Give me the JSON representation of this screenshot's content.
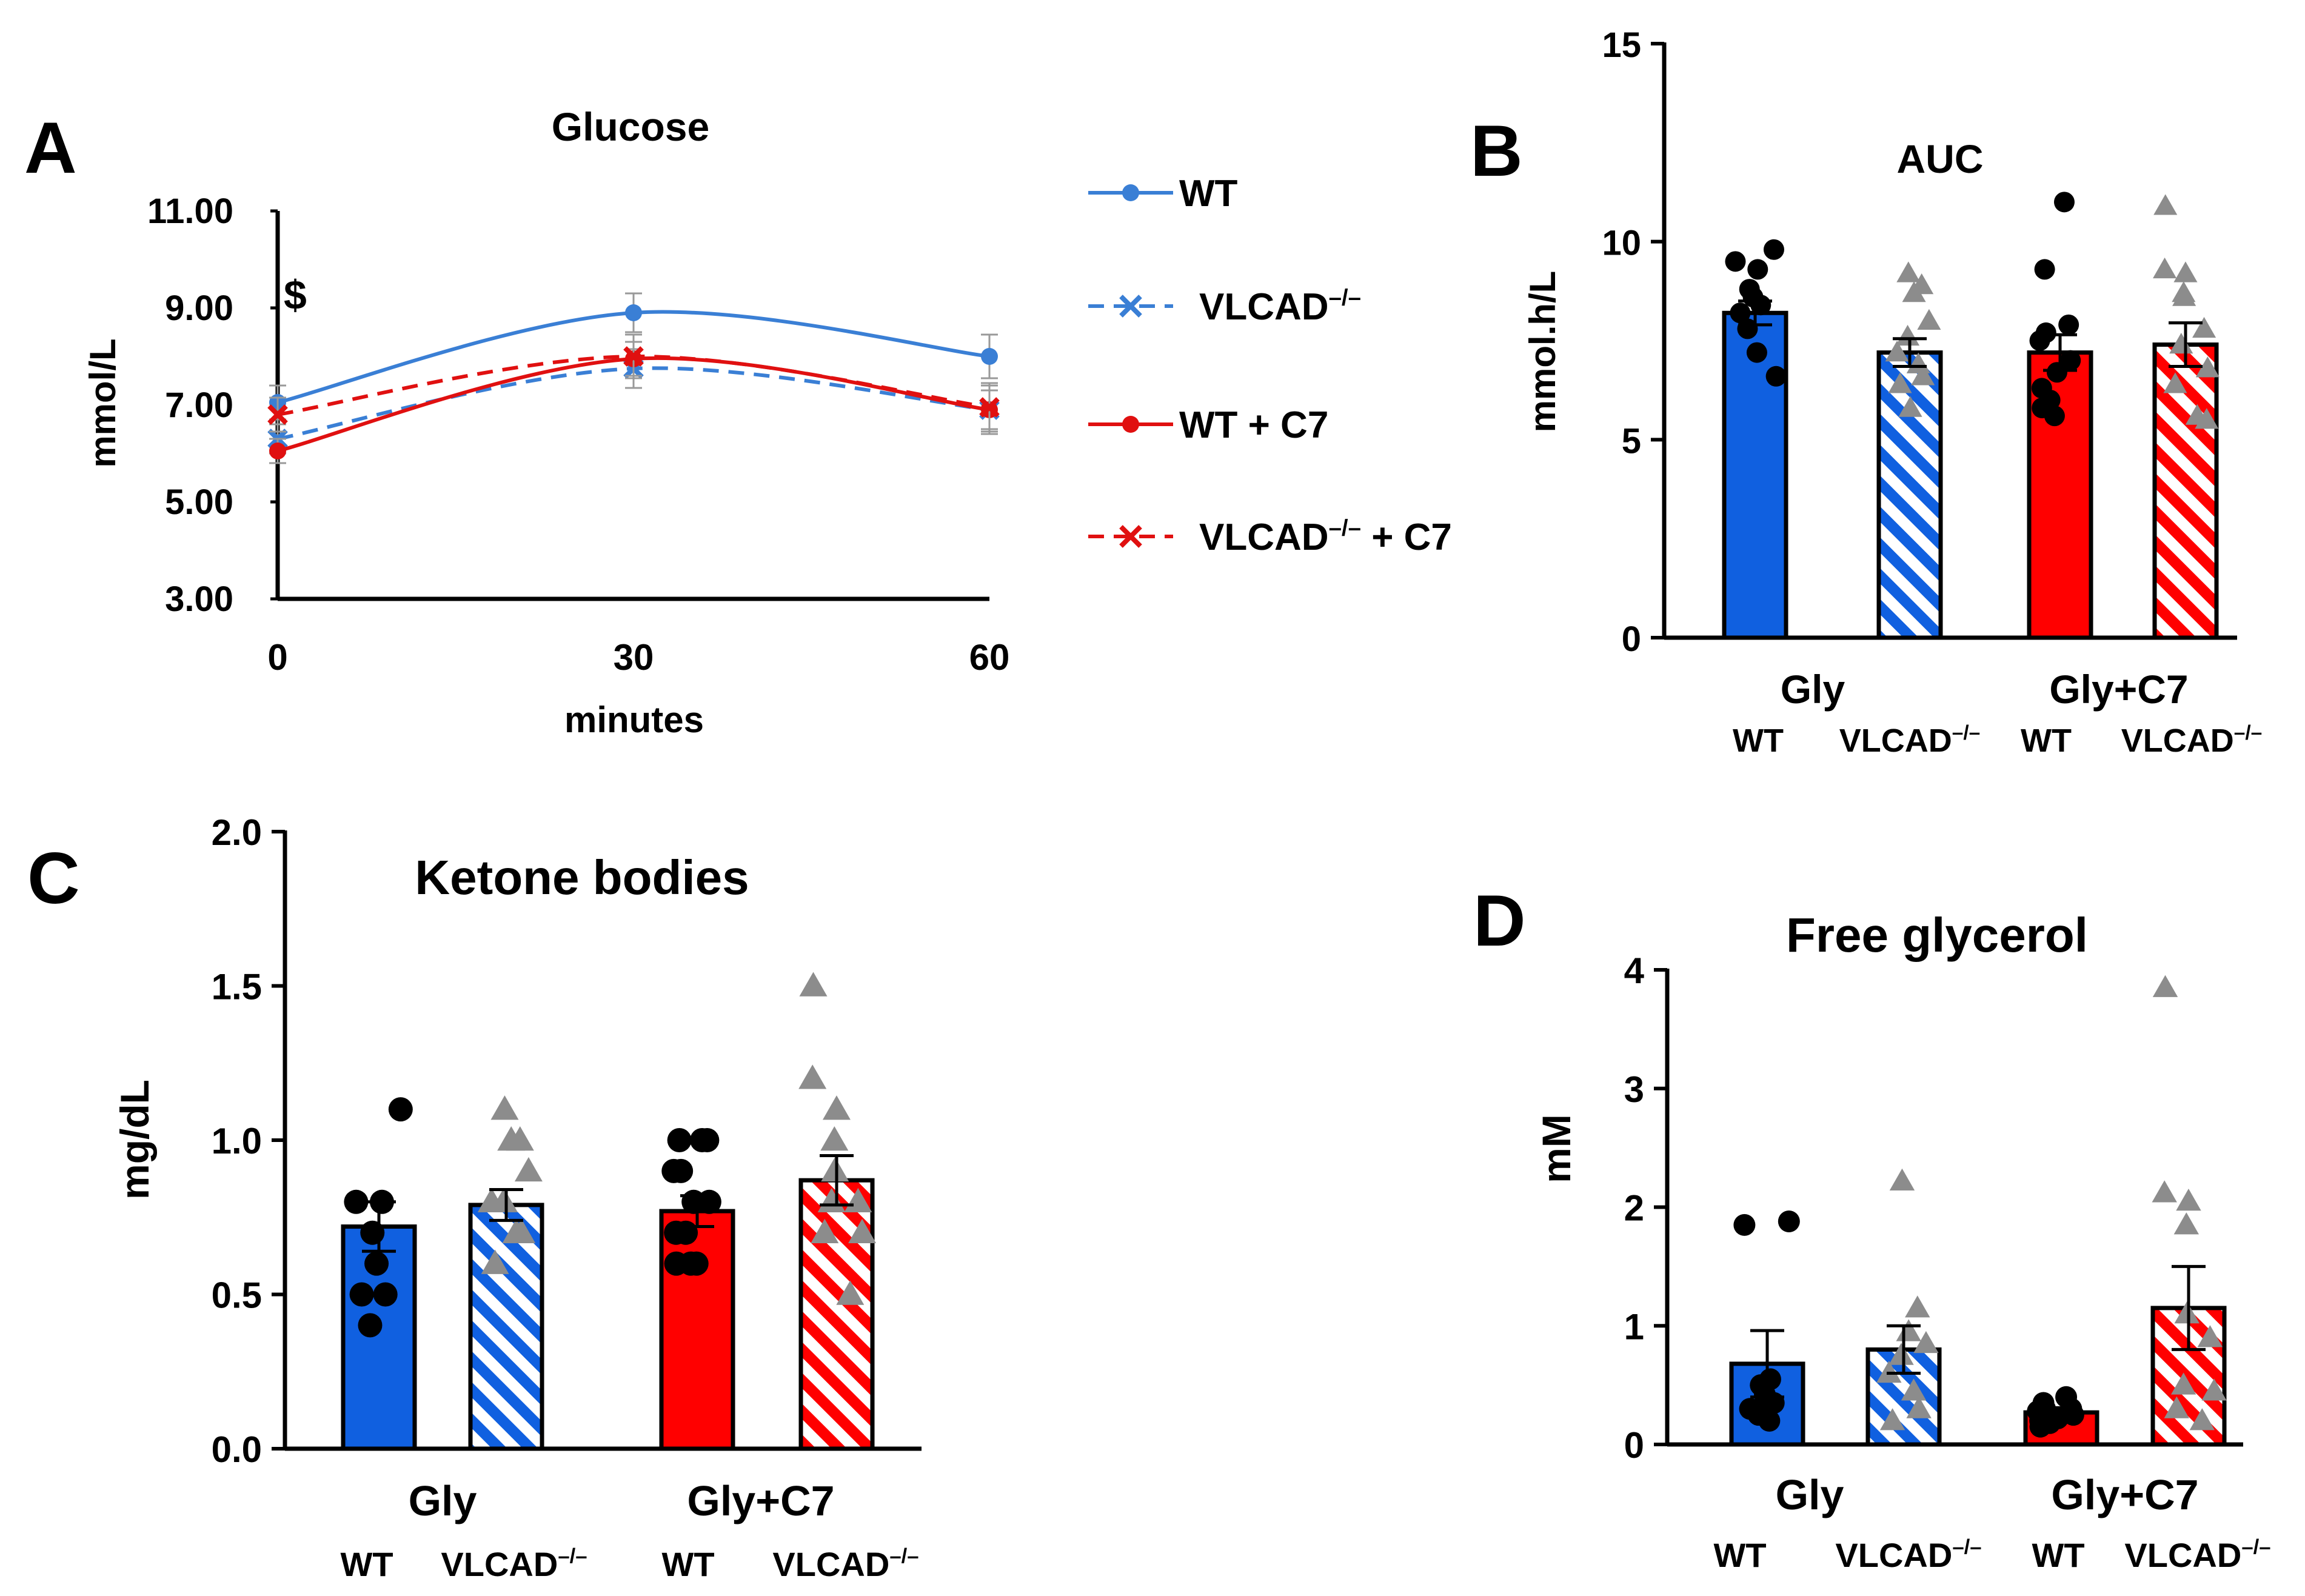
{
  "colors": {
    "wt": "#1060e0",
    "vlcad": "#1060e0",
    "wt_c7": "#ff0000",
    "vlcad_c7": "#ff0000",
    "line_wt": "#3a7fd5",
    "line_red": "#e01010",
    "dot_wt": "#000000",
    "dot_vlcad": "#8c8c8c"
  },
  "chart_data": [
    {
      "id": "A",
      "panel_label": "A",
      "type": "line",
      "title": "Glucose",
      "xlabel": "minutes",
      "ylabel": "mmol/L",
      "x": [
        0,
        30,
        60
      ],
      "xticks": [
        "0",
        "30",
        "60"
      ],
      "yticks": [
        "3.00",
        "5.00",
        "7.00",
        "9.00",
        "11.00"
      ],
      "ylim": [
        3,
        11
      ],
      "annotation": "$",
      "series": [
        {
          "name": "WT",
          "legend": "WT",
          "values": [
            7.05,
            8.9,
            8.0
          ],
          "errors": [
            0.35,
            0.4,
            0.45
          ],
          "dashed": false,
          "marker": "dot",
          "color": "#3a7fd5"
        },
        {
          "name": "VLCAD-/-",
          "legend_main": "VLCAD",
          "legend_sup": "–/–",
          "values": [
            6.3,
            7.75,
            6.9
          ],
          "errors": [
            0.3,
            0.4,
            0.5
          ],
          "dashed": true,
          "marker": "x",
          "color": "#3a7fd5"
        },
        {
          "name": "WT + C7",
          "legend": "WT + C7",
          "values": [
            6.05,
            7.95,
            6.9
          ],
          "errors": [
            0.25,
            0.35,
            0.4
          ],
          "dashed": false,
          "marker": "dot",
          "color": "#e01010"
        },
        {
          "name": "VLCAD-/- + C7",
          "legend_main": "VLCAD",
          "legend_sup": "–/–",
          "legend_tail": " + C7",
          "values": [
            6.8,
            8.0,
            6.95
          ],
          "errors": [
            0.35,
            0.45,
            0.5
          ],
          "dashed": true,
          "marker": "x",
          "color": "#e01010"
        }
      ]
    },
    {
      "id": "B",
      "panel_label": "B",
      "type": "bar",
      "title": "AUC",
      "ylabel": "mmol.h/L",
      "ylim": [
        0,
        15
      ],
      "yticks": [
        "0",
        "5",
        "10",
        "15"
      ],
      "groups": [
        "Gly",
        "Gly+C7"
      ],
      "sub_labels": [
        "WT",
        "VLCAD",
        "WT",
        "VLCAD"
      ],
      "sub_sup": [
        "",
        "–/–",
        "",
        "–/–"
      ],
      "bars": [
        {
          "name": "Gly WT",
          "mean": 8.2,
          "sem": 0.3,
          "points": [
            9.8,
            9.5,
            9.3,
            8.8,
            8.6,
            8.4,
            8.2,
            7.8,
            7.2,
            6.6
          ],
          "marker": "dot"
        },
        {
          "name": "Gly VLCAD-/-",
          "mean": 7.2,
          "sem": 0.35,
          "points": [
            9.2,
            8.9,
            8.7,
            8.0,
            7.6,
            7.2,
            6.9,
            6.6,
            6.4,
            5.8
          ],
          "marker": "triangle"
        },
        {
          "name": "Gly+C7 WT",
          "mean": 7.2,
          "sem": 0.45,
          "points": [
            11.0,
            9.3,
            7.9,
            7.7,
            7.5,
            7.0,
            6.7,
            6.3,
            6.0,
            5.8,
            5.6
          ],
          "marker": "dot"
        },
        {
          "name": "Gly+C7 VLCAD-/-",
          "mean": 7.4,
          "sem": 0.55,
          "points": [
            10.9,
            9.3,
            9.2,
            8.7,
            8.6,
            7.8,
            7.4,
            6.8,
            6.4,
            5.6,
            5.5
          ],
          "marker": "triangle"
        }
      ]
    },
    {
      "id": "C",
      "panel_label": "C",
      "type": "bar",
      "title": "Ketone bodies",
      "ylabel": "mg/dL",
      "ylim": [
        0,
        2
      ],
      "yticks": [
        "0.0",
        "0.5",
        "1.0",
        "1.5",
        "2.0"
      ],
      "groups": [
        "Gly",
        "Gly+C7"
      ],
      "sub_labels": [
        "WT",
        "VLCAD",
        "WT",
        "VLCAD"
      ],
      "sub_sup": [
        "",
        "–/–",
        "",
        "–/–"
      ],
      "bars": [
        {
          "name": "Gly WT",
          "mean": 0.72,
          "sem": 0.08,
          "points": [
            1.1,
            0.8,
            0.8,
            0.7,
            0.6,
            0.5,
            0.5,
            0.4
          ],
          "marker": "dot"
        },
        {
          "name": "Gly VLCAD-/-",
          "mean": 0.79,
          "sem": 0.05,
          "points": [
            1.1,
            1.0,
            1.0,
            0.9,
            0.8,
            0.8,
            0.7,
            0.7,
            0.6
          ],
          "marker": "triangle"
        },
        {
          "name": "Gly+C7 WT",
          "mean": 0.77,
          "sem": 0.05,
          "points": [
            1.0,
            1.0,
            1.0,
            0.9,
            0.9,
            0.8,
            0.8,
            0.7,
            0.7,
            0.6,
            0.6,
            0.6
          ],
          "marker": "dot"
        },
        {
          "name": "Gly+C7 VLCAD-/-",
          "mean": 0.87,
          "sem": 0.08,
          "points": [
            1.5,
            1.2,
            1.1,
            1.0,
            0.9,
            0.8,
            0.8,
            0.7,
            0.7,
            0.5
          ],
          "marker": "triangle"
        }
      ]
    },
    {
      "id": "D",
      "panel_label": "D",
      "type": "bar",
      "title": "Free glycerol",
      "ylabel": "mM",
      "ylim": [
        0,
        4
      ],
      "yticks": [
        "0",
        "1",
        "2",
        "3",
        "4"
      ],
      "groups": [
        "Gly",
        "Gly+C7"
      ],
      "sub_labels": [
        "WT",
        "VLCAD",
        "WT",
        "VLCAD"
      ],
      "sub_sup": [
        "",
        "–/–",
        "",
        "–/–"
      ],
      "bars": [
        {
          "name": "Gly WT",
          "mean": 0.68,
          "sem": 0.28,
          "points": [
            1.88,
            1.85,
            0.55,
            0.5,
            0.42,
            0.35,
            0.3,
            0.25,
            0.2
          ],
          "marker": "dot"
        },
        {
          "name": "Gly VLCAD-/-",
          "mean": 0.8,
          "sem": 0.2,
          "points": [
            2.22,
            1.15,
            0.95,
            0.85,
            0.75,
            0.6,
            0.45,
            0.3,
            0.2
          ],
          "marker": "triangle"
        },
        {
          "name": "Gly+C7 WT",
          "mean": 0.27,
          "sem": 0.04,
          "points": [
            0.4,
            0.35,
            0.3,
            0.3,
            0.28,
            0.25,
            0.22,
            0.2,
            0.18,
            0.15
          ],
          "marker": "dot"
        },
        {
          "name": "Gly+C7 VLCAD-/-",
          "mean": 1.15,
          "sem": 0.35,
          "points": [
            3.85,
            2.12,
            2.05,
            1.85,
            1.1,
            0.9,
            0.5,
            0.45,
            0.3,
            0.2
          ],
          "marker": "triangle"
        }
      ]
    }
  ]
}
